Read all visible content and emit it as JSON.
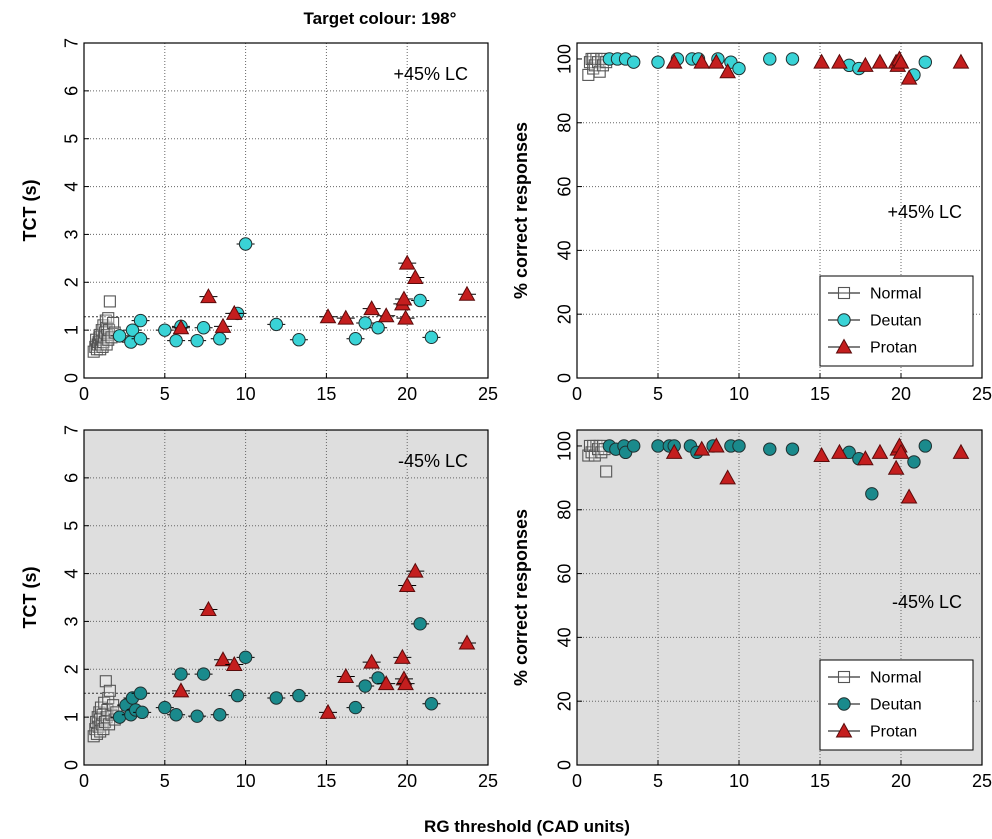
{
  "figure": {
    "title": "Target colour: 198°",
    "xlabel": "RG threshold (CAD units)"
  },
  "colors": {
    "normal": "#555555",
    "deutan_top": "#39d3d6",
    "deutan_bottom": "#1a8a8c",
    "protan": "#c41e1e",
    "panel_bg_bottom": "#dedede"
  },
  "chart_data": [
    {
      "id": "top-left",
      "type": "scatter",
      "ylabel": "TCT (s)",
      "annotation": "+45% LC",
      "xlim": [
        0,
        25
      ],
      "ylim": [
        0,
        7
      ],
      "xticks": [
        "0",
        "5",
        "10",
        "15",
        "20",
        "25"
      ],
      "yticks": [
        "0",
        "1",
        "2",
        "3",
        "4",
        "5",
        "6",
        "7"
      ],
      "reference_line": 1.28,
      "series": [
        {
          "name": "Normal",
          "marker": "square",
          "points": [
            [
              0.6,
              0.55
            ],
            [
              0.7,
              0.65
            ],
            [
              0.75,
              0.8
            ],
            [
              0.8,
              0.6
            ],
            [
              0.85,
              0.7
            ],
            [
              0.9,
              0.75
            ],
            [
              0.95,
              0.85
            ],
            [
              1.0,
              0.6
            ],
            [
              1.0,
              0.9
            ],
            [
              1.05,
              0.7
            ],
            [
              1.1,
              0.8
            ],
            [
              1.1,
              1.0
            ],
            [
              1.15,
              0.65
            ],
            [
              1.2,
              0.75
            ],
            [
              1.2,
              1.1
            ],
            [
              1.25,
              0.85
            ],
            [
              1.3,
              0.95
            ],
            [
              1.35,
              1.2
            ],
            [
              1.4,
              0.7
            ],
            [
              1.4,
              1.05
            ],
            [
              1.45,
              0.9
            ],
            [
              1.5,
              1.25
            ],
            [
              1.5,
              0.8
            ],
            [
              1.55,
              1.0
            ],
            [
              1.6,
              1.6
            ],
            [
              1.7,
              0.85
            ],
            [
              1.8,
              1.15
            ],
            [
              1.9,
              0.95
            ]
          ]
        },
        {
          "name": "Deutan",
          "marker": "circle",
          "points": [
            [
              2.2,
              0.88
            ],
            [
              2.9,
              0.75
            ],
            [
              3.0,
              1.0
            ],
            [
              3.5,
              0.82
            ],
            [
              3.5,
              1.2
            ],
            [
              5.0,
              1.0
            ],
            [
              5.7,
              0.78
            ],
            [
              6.0,
              1.08
            ],
            [
              7.0,
              0.78
            ],
            [
              7.4,
              1.05
            ],
            [
              8.4,
              0.82
            ],
            [
              9.5,
              1.35
            ],
            [
              10.0,
              2.8
            ],
            [
              11.9,
              1.12
            ],
            [
              13.3,
              0.8
            ],
            [
              16.8,
              0.82
            ],
            [
              17.4,
              1.15
            ],
            [
              18.2,
              1.05
            ],
            [
              20.8,
              1.62
            ],
            [
              21.5,
              0.85
            ]
          ]
        },
        {
          "name": "Protan",
          "marker": "triangle",
          "points": [
            [
              6.0,
              1.05
            ],
            [
              7.7,
              1.7
            ],
            [
              8.6,
              1.08
            ],
            [
              9.3,
              1.35
            ],
            [
              15.1,
              1.28
            ],
            [
              16.2,
              1.25
            ],
            [
              17.8,
              1.45
            ],
            [
              18.7,
              1.3
            ],
            [
              19.7,
              1.55
            ],
            [
              19.8,
              1.65
            ],
            [
              19.9,
              1.25
            ],
            [
              20.0,
              2.4
            ],
            [
              20.5,
              2.1
            ],
            [
              23.7,
              1.75
            ]
          ]
        }
      ]
    },
    {
      "id": "top-right",
      "type": "scatter",
      "ylabel": "% correct responses",
      "annotation": "+45% LC",
      "xlim": [
        0,
        25
      ],
      "ylim": [
        0,
        105
      ],
      "xticks": [
        "0",
        "5",
        "10",
        "15",
        "20",
        "25"
      ],
      "yticks": [
        "0",
        "20",
        "40",
        "60",
        "80",
        "100"
      ],
      "legend": [
        "Normal",
        "Deutan",
        "Protan"
      ],
      "series": [
        {
          "name": "Normal",
          "marker": "square",
          "points": [
            [
              0.7,
              95
            ],
            [
              0.8,
              99
            ],
            [
              0.9,
              100
            ],
            [
              1.0,
              97
            ],
            [
              1.0,
              100
            ],
            [
              1.1,
              98
            ],
            [
              1.2,
              100
            ],
            [
              1.3,
              99
            ],
            [
              1.4,
              96
            ],
            [
              1.5,
              100
            ],
            [
              1.6,
              98
            ],
            [
              1.7,
              100
            ],
            [
              1.8,
              99
            ]
          ]
        },
        {
          "name": "Deutan",
          "marker": "circle",
          "points": [
            [
              2.0,
              100
            ],
            [
              2.5,
              100
            ],
            [
              3.0,
              100
            ],
            [
              3.5,
              99
            ],
            [
              5.0,
              99
            ],
            [
              6.2,
              100
            ],
            [
              7.1,
              100
            ],
            [
              7.5,
              100
            ],
            [
              8.7,
              100
            ],
            [
              9.5,
              99
            ],
            [
              10.0,
              97
            ],
            [
              11.9,
              100
            ],
            [
              13.3,
              100
            ],
            [
              16.8,
              98
            ],
            [
              17.4,
              97
            ],
            [
              20.8,
              95
            ],
            [
              21.5,
              99
            ]
          ]
        },
        {
          "name": "Protan",
          "marker": "triangle",
          "points": [
            [
              6.0,
              99
            ],
            [
              7.7,
              99
            ],
            [
              8.6,
              99
            ],
            [
              9.3,
              96
            ],
            [
              15.1,
              99
            ],
            [
              16.2,
              99
            ],
            [
              17.8,
              98
            ],
            [
              18.7,
              99
            ],
            [
              19.7,
              99
            ],
            [
              19.8,
              98
            ],
            [
              19.9,
              100
            ],
            [
              20.0,
              99
            ],
            [
              20.5,
              94
            ],
            [
              23.7,
              99
            ]
          ]
        }
      ]
    },
    {
      "id": "bottom-left",
      "type": "scatter",
      "ylabel": "TCT (s)",
      "annotation": "-45% LC",
      "xlim": [
        0,
        25
      ],
      "ylim": [
        0,
        7
      ],
      "xticks": [
        "0",
        "5",
        "10",
        "15",
        "20",
        "25"
      ],
      "yticks": [
        "0",
        "1",
        "2",
        "3",
        "4",
        "5",
        "6",
        "7"
      ],
      "reference_line": 1.5,
      "series": [
        {
          "name": "Normal",
          "marker": "square",
          "points": [
            [
              0.6,
              0.6
            ],
            [
              0.7,
              0.75
            ],
            [
              0.75,
              0.9
            ],
            [
              0.8,
              0.65
            ],
            [
              0.85,
              1.0
            ],
            [
              0.9,
              0.8
            ],
            [
              0.95,
              1.1
            ],
            [
              1.0,
              0.7
            ],
            [
              1.0,
              0.95
            ],
            [
              1.05,
              1.2
            ],
            [
              1.1,
              0.85
            ],
            [
              1.15,
              1.05
            ],
            [
              1.2,
              0.75
            ],
            [
              1.25,
              1.3
            ],
            [
              1.3,
              0.9
            ],
            [
              1.35,
              1.75
            ],
            [
              1.4,
              1.0
            ],
            [
              1.45,
              1.15
            ],
            [
              1.5,
              1.4
            ],
            [
              1.55,
              0.85
            ],
            [
              1.6,
              1.55
            ],
            [
              1.7,
              1.05
            ],
            [
              1.8,
              1.25
            ],
            [
              1.9,
              0.95
            ],
            [
              2.0,
              1.1
            ]
          ]
        },
        {
          "name": "Deutan",
          "marker": "circle",
          "points": [
            [
              2.2,
              1.0
            ],
            [
              2.6,
              1.25
            ],
            [
              2.9,
              1.05
            ],
            [
              3.0,
              1.4
            ],
            [
              3.2,
              1.15
            ],
            [
              3.5,
              1.5
            ],
            [
              3.6,
              1.1
            ],
            [
              5.0,
              1.2
            ],
            [
              5.7,
              1.05
            ],
            [
              6.0,
              1.9
            ],
            [
              7.0,
              1.02
            ],
            [
              7.4,
              1.9
            ],
            [
              8.4,
              1.05
            ],
            [
              9.5,
              1.45
            ],
            [
              10.0,
              2.25
            ],
            [
              11.9,
              1.4
            ],
            [
              13.3,
              1.45
            ],
            [
              16.8,
              1.2
            ],
            [
              17.4,
              1.65
            ],
            [
              18.2,
              1.82
            ],
            [
              20.8,
              2.95
            ],
            [
              21.5,
              1.28
            ]
          ]
        },
        {
          "name": "Protan",
          "marker": "triangle",
          "points": [
            [
              6.0,
              1.55
            ],
            [
              7.7,
              3.25
            ],
            [
              8.6,
              2.2
            ],
            [
              9.3,
              2.1
            ],
            [
              15.1,
              1.1
            ],
            [
              16.2,
              1.85
            ],
            [
              17.8,
              2.15
            ],
            [
              18.7,
              1.7
            ],
            [
              19.7,
              2.25
            ],
            [
              19.8,
              1.8
            ],
            [
              19.9,
              1.7
            ],
            [
              20.0,
              3.75
            ],
            [
              20.5,
              4.05
            ],
            [
              23.7,
              2.55
            ]
          ]
        }
      ]
    },
    {
      "id": "bottom-right",
      "type": "scatter",
      "ylabel": "% correct responses",
      "annotation": "-45% LC",
      "xlim": [
        0,
        25
      ],
      "ylim": [
        0,
        105
      ],
      "xticks": [
        "0",
        "5",
        "10",
        "15",
        "20",
        "25"
      ],
      "yticks": [
        "0",
        "20",
        "40",
        "60",
        "80",
        "100"
      ],
      "legend": [
        "Normal",
        "Deutan",
        "Protan"
      ],
      "series": [
        {
          "name": "Normal",
          "marker": "square",
          "points": [
            [
              0.7,
              97
            ],
            [
              0.8,
              100
            ],
            [
              0.9,
              98
            ],
            [
              1.0,
              100
            ],
            [
              1.1,
              97
            ],
            [
              1.2,
              100
            ],
            [
              1.3,
              99
            ],
            [
              1.4,
              100
            ],
            [
              1.5,
              98
            ],
            [
              1.6,
              100
            ],
            [
              1.7,
              99
            ],
            [
              1.8,
              92
            ]
          ]
        },
        {
          "name": "Deutan",
          "marker": "circle",
          "points": [
            [
              2.0,
              100
            ],
            [
              2.4,
              99
            ],
            [
              2.9,
              100
            ],
            [
              3.0,
              98
            ],
            [
              3.5,
              100
            ],
            [
              5.0,
              100
            ],
            [
              5.7,
              100
            ],
            [
              6.0,
              100
            ],
            [
              7.0,
              100
            ],
            [
              7.4,
              98
            ],
            [
              8.4,
              100
            ],
            [
              9.5,
              100
            ],
            [
              10.0,
              100
            ],
            [
              11.9,
              99
            ],
            [
              13.3,
              99
            ],
            [
              16.8,
              98
            ],
            [
              17.4,
              96
            ],
            [
              18.2,
              85
            ],
            [
              20.8,
              95
            ],
            [
              21.5,
              100
            ]
          ]
        },
        {
          "name": "Protan",
          "marker": "triangle",
          "points": [
            [
              6.0,
              98
            ],
            [
              7.7,
              99
            ],
            [
              8.6,
              100
            ],
            [
              9.3,
              90
            ],
            [
              15.1,
              97
            ],
            [
              16.2,
              98
            ],
            [
              17.8,
              96
            ],
            [
              18.7,
              98
            ],
            [
              19.7,
              93
            ],
            [
              19.8,
              99
            ],
            [
              19.9,
              100
            ],
            [
              20.0,
              98
            ],
            [
              20.5,
              84
            ],
            [
              23.7,
              98
            ]
          ]
        }
      ]
    }
  ]
}
